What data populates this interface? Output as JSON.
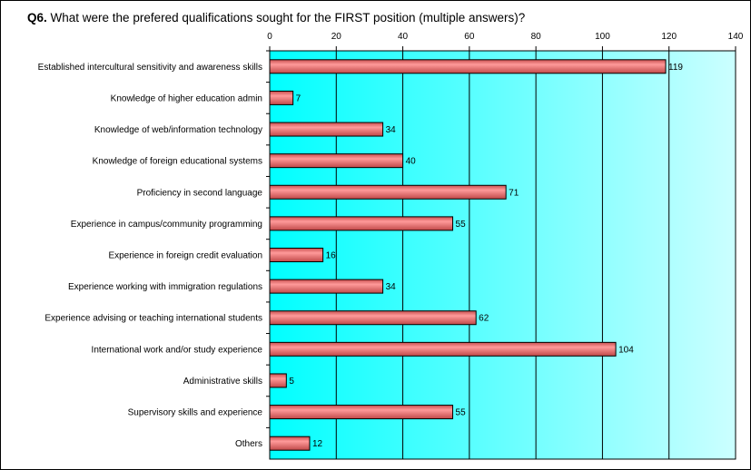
{
  "chart_data": {
    "type": "bar",
    "orientation": "horizontal",
    "title_prefix": "Q6.",
    "title": "What were the prefered qualifications sought for the FIRST position (multiple answers)?",
    "categories": [
      "Established intercultural sensitivity and awareness skills",
      "Knowledge of higher education admin",
      "Knowledge of web/information technology",
      "Knowledge of foreign educational systems",
      "Proficiency in second language",
      "Experience in campus/community programming",
      "Experience in foreign credit evaluation",
      "Experience working with immigration regulations",
      "Experience advising or teaching international students",
      "International work and/or study experience",
      "Administrative skills",
      "Supervisory skills and experience",
      "Others"
    ],
    "values": [
      119,
      7,
      34,
      40,
      71,
      55,
      16,
      34,
      62,
      104,
      5,
      55,
      12
    ],
    "xlim": [
      0,
      140
    ],
    "xticks": [
      0,
      20,
      40,
      60,
      80,
      100,
      120,
      140
    ],
    "axis_position": "top",
    "grid": true,
    "legend": "none",
    "colors": {
      "bar_fill": "#e87878",
      "bar_outline": "#000000",
      "plot_gradient_start": "#00ffff",
      "plot_gradient_end": "#ccffff"
    }
  }
}
